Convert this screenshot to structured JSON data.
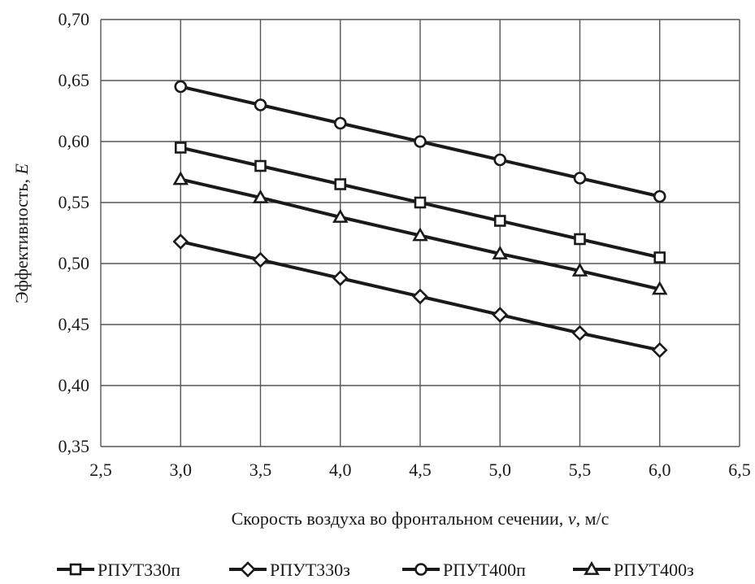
{
  "chart_data": {
    "type": "line",
    "title": "",
    "xlabel": "Скорость воздуха во фронтальном сечении, ",
    "xlabel_var": "v",
    "xlabel_unit": ", м/с",
    "ylabel": "Эффективность, ",
    "ylabel_var": "E",
    "xlim": [
      2.5,
      6.5
    ],
    "ylim": [
      0.35,
      0.7
    ],
    "x_ticks": [
      2.5,
      3.0,
      3.5,
      4.0,
      4.5,
      5.0,
      5.5,
      6.0,
      6.5
    ],
    "x_tick_labels": [
      "2,5",
      "3,0",
      "3,5",
      "4,0",
      "4,5",
      "5,0",
      "5,5",
      "6,0",
      "6,5"
    ],
    "y_ticks": [
      0.35,
      0.4,
      0.45,
      0.5,
      0.55,
      0.6,
      0.65,
      0.7
    ],
    "y_tick_labels": [
      "0,35",
      "0,40",
      "0,45",
      "0,50",
      "0,55",
      "0,60",
      "0,65",
      "0,70"
    ],
    "grid": true,
    "legend_position": "bottom",
    "x": [
      3.0,
      3.5,
      4.0,
      4.5,
      5.0,
      5.5,
      6.0
    ],
    "series": [
      {
        "name": "РПУТ330п",
        "marker": "square",
        "values": [
          0.595,
          0.58,
          0.565,
          0.55,
          0.535,
          0.52,
          0.505
        ]
      },
      {
        "name": "РПУТ330з",
        "marker": "diamond",
        "values": [
          0.518,
          0.503,
          0.488,
          0.473,
          0.458,
          0.443,
          0.429
        ]
      },
      {
        "name": "РПУТ400п",
        "marker": "circle",
        "values": [
          0.645,
          0.63,
          0.615,
          0.6,
          0.585,
          0.57,
          0.555
        ]
      },
      {
        "name": "РПУТ400з",
        "marker": "triangle",
        "values": [
          0.569,
          0.554,
          0.538,
          0.523,
          0.508,
          0.494,
          0.479
        ]
      }
    ]
  }
}
